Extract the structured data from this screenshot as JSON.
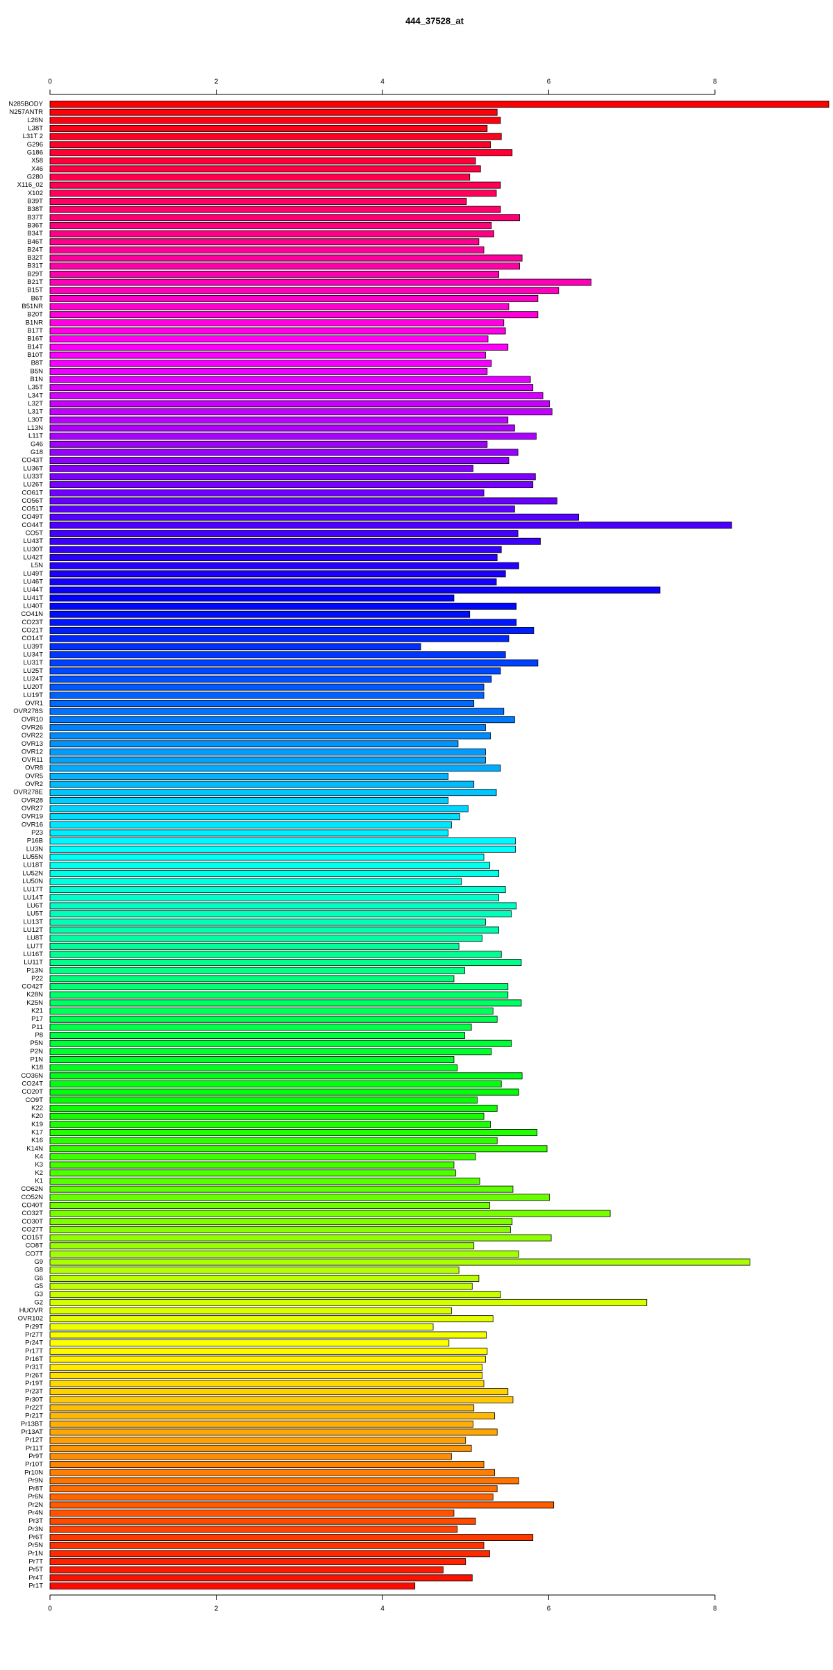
{
  "chart_data": {
    "type": "bar",
    "orientation": "horizontal",
    "title": "444_37528_at",
    "categories": [
      "N285BODY",
      "N257ANTR",
      "L26N",
      "L38T",
      "L31T 2",
      "G296",
      "G186",
      "X58",
      "X46",
      "G280",
      "X116_02",
      "X102",
      "B39T",
      "B38T",
      "B37T",
      "B36T",
      "B34T",
      "B46T",
      "B24T",
      "B32T",
      "B31T",
      "B29T",
      "B21T",
      "B15T",
      "B6T",
      "B51NR",
      "B20T",
      "B1NR",
      "B17T",
      "B16T",
      "B14T",
      "B10T",
      "B8T",
      "B5N",
      "B1N",
      "L35T",
      "L34T",
      "L32T",
      "L31T",
      "L30T",
      "L13N",
      "L11T",
      "G46",
      "G18",
      "CO43T",
      "LU36T",
      "LU33T",
      "LU26T",
      "CO61T",
      "CO56T",
      "CO51T",
      "CO49T",
      "CO44T",
      "CO5T",
      "LU43T",
      "LU30T",
      "LU42T",
      "L5N",
      "LU49T",
      "LU46T",
      "LU44T",
      "LU41T",
      "LU40T",
      "CO41N",
      "CO23T",
      "CO21T",
      "CO14T",
      "LU39T",
      "LU34T",
      "LU31T",
      "LU25T",
      "LU24T",
      "LU20T",
      "LU19T",
      "OVR1",
      "OVR278S",
      "OVR10",
      "OVR26",
      "OVR22",
      "OVR13",
      "OVR12",
      "OVR11",
      "OVR8",
      "OVR5",
      "OVR2",
      "OVR278E",
      "OVR28",
      "OVR27",
      "OVR19",
      "OVR16",
      "P23",
      "P16B",
      "LU3N",
      "LU55N",
      "LU18T",
      "LU52N",
      "LU50N",
      "LU17T",
      "LU14T",
      "LU6T",
      "LU5T",
      "LU13T",
      "LU12T",
      "LU8T",
      "LU7T",
      "LU16T",
      "LU11T",
      "P13N",
      "P22",
      "CO42T",
      "K28N",
      "K25N",
      "K21",
      "P17",
      "P11",
      "P8",
      "P5N",
      "P2N",
      "P1N",
      "K18",
      "CO36N",
      "CO24T",
      "CO20T",
      "CO9T",
      "K22",
      "K20",
      "K19",
      "K17",
      "K16",
      "K14N",
      "K4",
      "K3",
      "K2",
      "K1",
      "CO62N",
      "CO52N",
      "CO40T",
      "CO32T",
      "CO30T",
      "CO27T",
      "CO15T",
      "CO8T",
      "CO7T",
      "G9",
      "G8",
      "G6",
      "G5",
      "G3",
      "G2",
      "HUOVR",
      "OVR102",
      "Pr29T",
      "Pr27T",
      "Pr24T",
      "Pr17T",
      "Pr16T",
      "Pr31T",
      "Pr26T",
      "Pr19T",
      "Pr23T",
      "Pr30T",
      "Pr22T",
      "Pr21T",
      "Pr13BT",
      "Pr13AT",
      "Pr12T",
      "Pr11T",
      "Pr9T",
      "Pr10T",
      "Pr10N",
      "Pr9N",
      "Pr8T",
      "Pr6N",
      "Pr2N",
      "Pr4N",
      "Pr3T",
      "Pr3N",
      "Pr6T",
      "Pr5N",
      "Pr1N",
      "Pr7T",
      "Pr5T",
      "Pr4T",
      "Pr1T"
    ],
    "values": [
      9.37,
      5.38,
      5.42,
      5.26,
      5.43,
      5.3,
      5.56,
      5.12,
      5.18,
      5.05,
      5.42,
      5.37,
      5.01,
      5.42,
      5.65,
      5.31,
      5.34,
      5.16,
      5.22,
      5.68,
      5.65,
      5.4,
      6.51,
      6.12,
      5.87,
      5.52,
      5.87,
      5.46,
      5.48,
      5.27,
      5.51,
      5.24,
      5.31,
      5.26,
      5.78,
      5.81,
      5.93,
      6.01,
      6.04,
      5.51,
      5.59,
      5.85,
      5.26,
      5.63,
      5.52,
      5.09,
      5.84,
      5.81,
      5.22,
      6.1,
      5.59,
      6.36,
      8.2,
      5.63,
      5.9,
      5.43,
      5.38,
      5.64,
      5.48,
      5.37,
      7.34,
      4.86,
      5.61,
      5.05,
      5.61,
      5.82,
      5.52,
      4.46,
      5.48,
      5.87,
      5.42,
      5.31,
      5.22,
      5.22,
      5.1,
      5.46,
      5.59,
      5.24,
      5.3,
      4.91,
      5.24,
      5.24,
      5.42,
      4.79,
      5.1,
      5.37,
      4.79,
      5.03,
      4.93,
      4.83,
      4.79,
      5.6,
      5.6,
      5.22,
      5.29,
      5.4,
      4.95,
      5.48,
      5.4,
      5.61,
      5.55,
      5.24,
      5.4,
      5.2,
      4.92,
      5.43,
      5.67,
      4.99,
      4.86,
      5.51,
      5.51,
      5.67,
      5.33,
      5.38,
      5.07,
      4.99,
      5.55,
      5.31,
      4.86,
      4.9,
      5.68,
      5.43,
      5.64,
      5.14,
      5.38,
      5.22,
      5.3,
      5.86,
      5.38,
      5.98,
      5.12,
      4.86,
      4.88,
      5.17,
      5.57,
      6.01,
      5.29,
      6.74,
      5.56,
      5.54,
      6.03,
      5.1,
      5.64,
      8.42,
      4.92,
      5.16,
      5.08,
      5.42,
      7.18,
      4.83,
      5.33,
      4.61,
      5.25,
      4.8,
      5.26,
      5.24,
      5.2,
      5.2,
      5.22,
      5.51,
      5.57,
      5.1,
      5.35,
      5.09,
      5.38,
      5.0,
      5.07,
      4.83,
      5.22,
      5.35,
      5.64,
      5.38,
      5.33,
      6.06,
      4.86,
      5.12,
      4.9,
      5.81,
      5.22,
      5.29,
      5.0,
      4.73,
      5.08,
      4.39
    ],
    "xlim": [
      0,
      9.37
    ],
    "xticks": [
      0,
      2,
      4,
      6,
      8
    ],
    "colormap": "rainbow"
  }
}
